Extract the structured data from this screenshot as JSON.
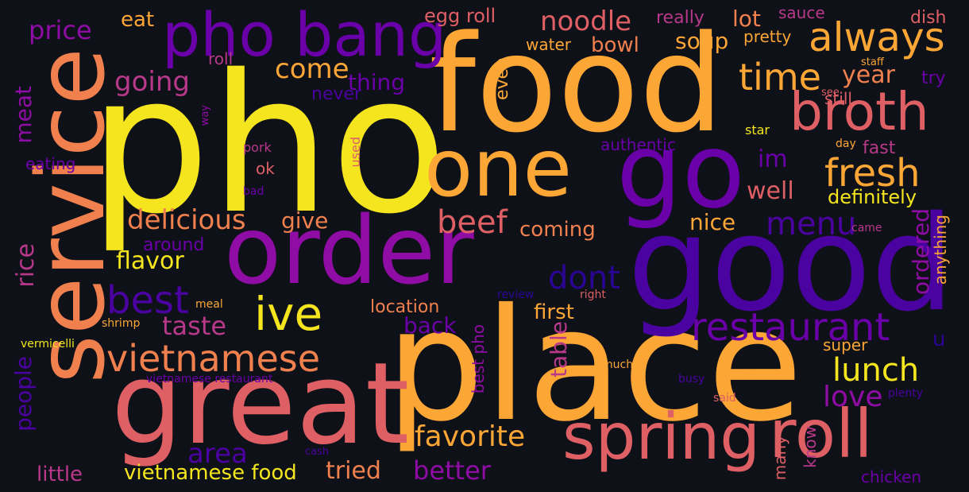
{
  "palette": {
    "yellow": "#f4e51e",
    "amber": "#fca636",
    "orange": "#f0804e",
    "coral": "#de5f64",
    "magenta": "#b8388a",
    "purple": "#8f0da4",
    "violet": "#6a00a8",
    "indigo": "#4a02a0",
    "navy": "#2a0593",
    "background": "#0f1119"
  },
  "words": {
    "pho": "pho",
    "food": "food",
    "place": "place",
    "good": "good",
    "service": "service",
    "great": "great",
    "order": "order",
    "go": "go",
    "one": "one",
    "pho_bang": "pho bang",
    "spring": "spring",
    "roll": "roll",
    "broth": "broth",
    "always": "always",
    "vietnamese": "vietnamese",
    "ive": "ive",
    "restaurant": "restaurant",
    "fresh": "fresh",
    "time": "time",
    "best": "best",
    "beef": "beef",
    "delicious": "delicious",
    "noodle": "noodle",
    "favorite": "favorite",
    "lunch": "lunch",
    "dont": "dont",
    "menu": "menu",
    "taste": "taste",
    "come": "come",
    "going": "going",
    "price": "price",
    "flavor": "flavor",
    "better": "better",
    "year": "year",
    "area": "area",
    "love": "love",
    "tried": "tried",
    "soup": "soup",
    "bowl": "bowl",
    "well": "well",
    "nice": "nice",
    "im": "im",
    "thing": "thing",
    "back": "back",
    "coming": "coming",
    "give": "give",
    "rice": "rice",
    "meat": "meat",
    "people": "people",
    "little": "little",
    "vietnamese_food": "vietnamese food",
    "location": "location",
    "first": "first",
    "ordered": "ordered",
    "table": "table",
    "definitely": "definitely",
    "egg_roll": "egg roll",
    "lot": "lot",
    "eat": "eat",
    "really": "really",
    "water": "water",
    "pretty": "pretty",
    "dish": "dish",
    "sauce": "sauce",
    "roll_small": "roll",
    "never": "never",
    "even": "even",
    "try": "try",
    "still": "still",
    "authentic": "authentic",
    "fast": "fast",
    "eating": "eating",
    "ok": "ok",
    "pork": "pork",
    "used": "used",
    "around": "around",
    "best_pho": "best pho",
    "super": "super",
    "anything": "anything",
    "many": "many",
    "know": "know",
    "u": "u",
    "chicken": "chicken",
    "vermicelli": "vermicelli",
    "shrimp": "shrimp",
    "meal": "meal",
    "review": "review",
    "right": "right",
    "much": "much",
    "busy": "busy",
    "said": "said",
    "plenty": "plenty",
    "vietnamese_restaurant": "vietnamese restaurant",
    "cash": "cash",
    "staff": "staff",
    "see": "see",
    "star": "star",
    "day": "day",
    "came": "came",
    "way": "way",
    "bad": "bad"
  }
}
